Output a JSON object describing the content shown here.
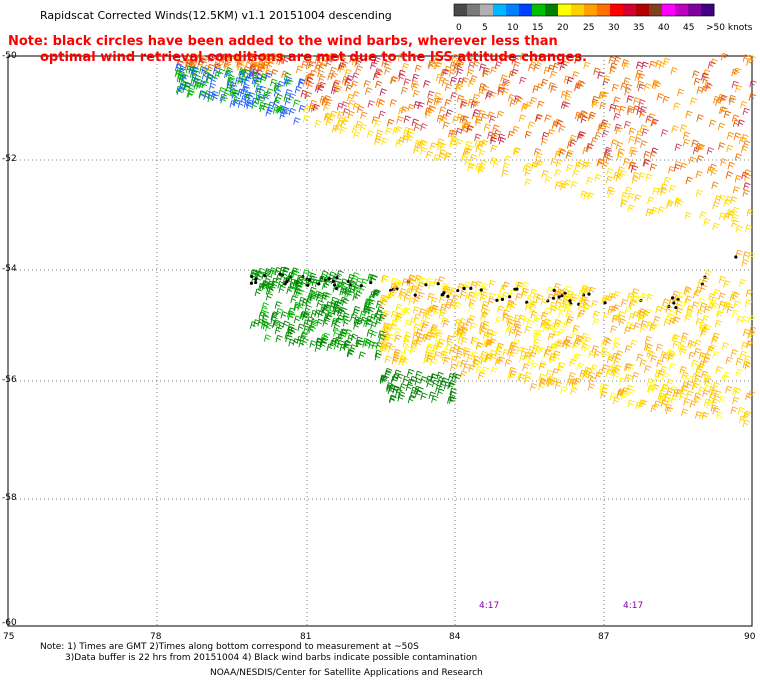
{
  "title": "Rapidscat Corrected Winds(12.5KM) v1.1 20151004 descending",
  "note": {
    "line1": "Note: black circles have been added to the wind barbs, wherever less than",
    "line2": "optimal wind retrieval conditions are met due to the ISS attitude changes."
  },
  "legend": {
    "labels": [
      "0",
      "5",
      "10",
      "15",
      "20",
      "25",
      "30",
      "35",
      "40",
      "45",
      ">50 knots"
    ],
    "colors": [
      "#4a4a4a",
      "#7a7a7a",
      "#b0b0b0",
      "#00b7ff",
      "#0080ff",
      "#0040ff",
      "#00c000",
      "#008000",
      "#ffff00",
      "#ffd000",
      "#ffa000",
      "#ff7000",
      "#ff0000",
      "#d00030",
      "#b00000",
      "#804020",
      "#ff00ff",
      "#c000c0",
      "#8000a0",
      "#400080"
    ]
  },
  "axes": {
    "lat_labels": [
      "-50",
      "-52",
      "-54",
      "-56",
      "-58",
      "-60"
    ],
    "lon_labels": [
      "75",
      "78",
      "81",
      "84",
      "87",
      "90"
    ]
  },
  "time_labels": [
    "4:17",
    "4:17"
  ],
  "footer": {
    "line1": "Note: 1) Times are GMT 2)Times along bottom correspond to measurement at ~50S",
    "line2": "3)Data buffer is 22 hrs from 20151004 4) Black wind barbs indicate possible contamination"
  },
  "credit": "NOAA/NESDIS/Center for Satellite Applications and Research"
}
